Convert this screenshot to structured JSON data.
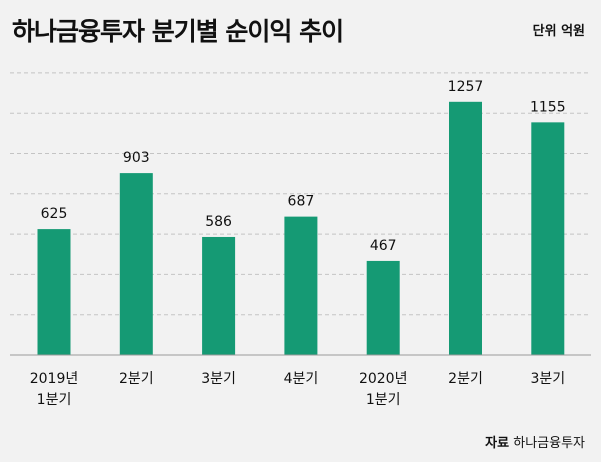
{
  "header": {
    "title": "하나금융투자 분기별 순이익 추이",
    "unit": "단위 억원"
  },
  "footer": {
    "source_key": "자료",
    "source_value": "하나금융투자"
  },
  "colors": {
    "bar": "#159a74",
    "grid": "#c4c4c4",
    "axis": "#9a9a9a",
    "background": "#f2f2f2"
  },
  "chart_data": {
    "type": "bar",
    "title": "하나금융투자 분기별 순이익 추이",
    "unit": "단위 억원",
    "categories": [
      [
        "2019년",
        "1분기"
      ],
      [
        "2분기"
      ],
      [
        "3분기"
      ],
      [
        "4분기"
      ],
      [
        "2020년",
        "1분기"
      ],
      [
        "2분기"
      ],
      [
        "3분기"
      ]
    ],
    "values": [
      625,
      903,
      586,
      687,
      467,
      1257,
      1155
    ],
    "ylim": [
      0,
      1400
    ],
    "grid": true,
    "legend": "none"
  }
}
